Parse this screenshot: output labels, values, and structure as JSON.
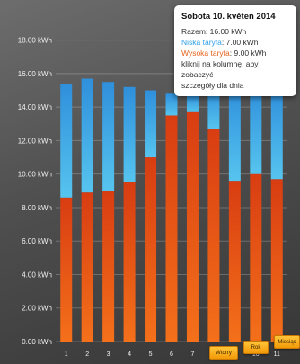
{
  "chart_data": {
    "type": "bar",
    "stacked": true,
    "categories": [
      "1",
      "2",
      "3",
      "4",
      "5",
      "6",
      "7",
      "8",
      "9",
      "10",
      "11"
    ],
    "series": [
      {
        "name": "Wysoka taryfa",
        "color": "#e8481a",
        "values": [
          8.6,
          8.9,
          9.0,
          9.5,
          11.0,
          13.5,
          13.7,
          12.7,
          9.6,
          10.0,
          9.7
        ]
      },
      {
        "name": "Niska taryfa",
        "color": "#3fa2e6",
        "values": [
          6.8,
          6.8,
          6.5,
          5.7,
          4.0,
          1.3,
          1.0,
          2.4,
          5.6,
          5.2,
          5.4
        ]
      }
    ],
    "y_tick_labels": [
      "0.00 kWh",
      "2.00 kWh",
      "4.00 kWh",
      "6.00 kWh",
      "8.00 kWh",
      "10.00 kWh",
      "12.00 kWh",
      "14.00 kWh",
      "16.00 kWh",
      "18.00 kWh"
    ],
    "ylim": [
      0,
      19
    ],
    "grid": true
  },
  "range_buttons": [
    "Wtorry",
    "Rok",
    "Miesiąc"
  ],
  "tooltip": {
    "title": "Sobota 10. květen 2014",
    "total_label": "Razem: 16.00 kWh",
    "low_label": "Niska taryfa",
    "low_value": ": 7.00 kWh",
    "high_label": "Wysoka taryfa",
    "high_value": ": 9.00 kWh",
    "hint_1": "kliknij na kolumnę, aby zobaczyć",
    "hint_2": "szczegóły dla dnia"
  }
}
